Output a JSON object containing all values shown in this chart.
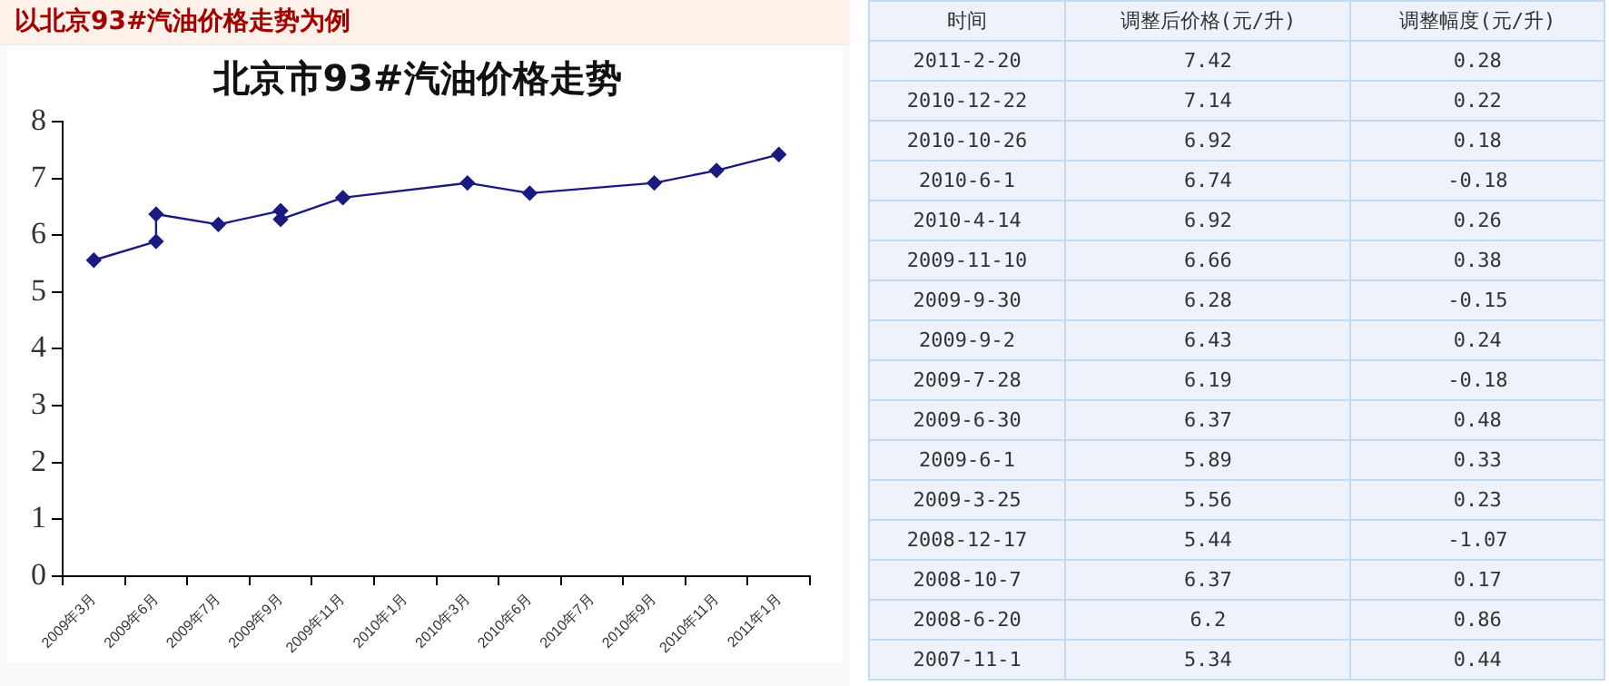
{
  "chart_data": [
    {
      "type": "line",
      "title": "北京市93#汽油价格走势",
      "annotations": [
        "以北京93#汽油价格走势为例"
      ],
      "categories": [
        "2009年3月",
        "2009年6月",
        "2009年7月",
        "2009年9月",
        "2009年11月",
        "2010年1月",
        "2010年3月",
        "2010年6月",
        "2010年7月",
        "2010年9月",
        "2010年11月",
        "2011年1月"
      ],
      "series": [
        {
          "color": "#1a1a80",
          "x": [
            "2009年3月",
            "2009年6月",
            "2009年6月",
            "2009年7月",
            "2009年9月",
            "2009年9月",
            "2009年11月",
            "2010年3月",
            "2010年6月",
            "2010年9月",
            "2010年11月",
            "2011年1月"
          ],
          "values": [
            5.56,
            5.89,
            6.37,
            6.19,
            6.43,
            6.28,
            6.66,
            6.92,
            6.74,
            6.92,
            7.14,
            7.42
          ]
        }
      ],
      "ylim": [
        0,
        8
      ],
      "yticks": [
        0,
        1,
        2,
        3,
        4,
        5,
        6,
        7,
        8
      ],
      "grid": false,
      "legend": false,
      "marker": "diamond",
      "line_style": "solid"
    },
    {
      "type": "other",
      "annotations": [
        "时间",
        "调整后价格(元/升)",
        "调整幅度(元/升)",
        "2011-2-20",
        "7.42",
        "0.28",
        "2010-12-22",
        "7.14",
        "0.22",
        "2010-10-26",
        "6.92",
        "0.18",
        "2010-6-1",
        "6.74",
        "-0.18",
        "2010-4-14",
        "6.92",
        "0.26",
        "2009-11-10",
        "6.66",
        "0.38",
        "2009-9-30",
        "6.28",
        "-0.15",
        "2009-9-2",
        "6.43",
        "0.24",
        "2009-7-28",
        "6.19",
        "-0.18",
        "2009-6-30",
        "6.37",
        "0.48",
        "2009-6-1",
        "5.89",
        "0.33",
        "2009-3-25",
        "5.56",
        "0.23",
        "2008-12-17",
        "5.44",
        "-1.07",
        "2008-10-7",
        "6.37",
        "0.17",
        "2008-6-20",
        "6.2",
        "0.86",
        "2007-11-1",
        "5.34",
        "0.44"
      ]
    }
  ]
}
